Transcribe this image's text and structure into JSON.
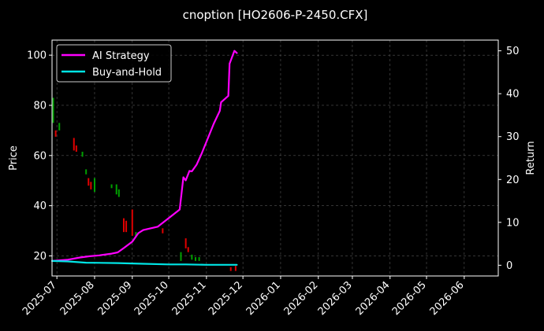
{
  "chart_data": {
    "type": "line",
    "title": "cnoption [HO2606-P-2450.CFX]",
    "ylabel_left": "Price",
    "ylabel_right": "Return",
    "xlim": [
      "2025-06-27",
      "2026-06-29"
    ],
    "ylim_left": [
      12,
      106
    ],
    "ylim_right": [
      -2.5,
      52.5
    ],
    "x_ticks": [
      "2025-07-01",
      "2025-08-01",
      "2025-09-01",
      "2025-10-01",
      "2025-11-01",
      "2025-12-01",
      "2026-01-01",
      "2026-02-01",
      "2026-03-01",
      "2026-04-01",
      "2026-05-01",
      "2026-06-01"
    ],
    "x_tick_labels": [
      "2025-07",
      "2025-08",
      "2025-09",
      "2025-10",
      "2025-11",
      "2025-12",
      "2026-01",
      "2026-02",
      "2026-03",
      "2026-04",
      "2026-05",
      "2026-06"
    ],
    "y_ticks_left": [
      20,
      40,
      60,
      80,
      100
    ],
    "y_ticks_right": [
      0,
      10,
      20,
      30,
      40,
      50
    ],
    "grid": true,
    "legend_position": "top-left",
    "colors": {
      "background": "#000000",
      "grid": "#555555",
      "up": "#00a000",
      "down": "#e00000",
      "strategy": "#ff00ff",
      "buyhold": "#00e5e5"
    },
    "series": [
      {
        "name": "AI Strategy",
        "axis": "right",
        "color": "#ff00ff",
        "x": [
          "2025-06-27",
          "2025-07-10",
          "2025-07-20",
          "2025-07-28",
          "2025-08-05",
          "2025-08-15",
          "2025-08-20",
          "2025-08-25",
          "2025-09-01",
          "2025-09-06",
          "2025-09-10",
          "2025-09-22",
          "2025-10-10",
          "2025-10-13",
          "2025-10-15",
          "2025-10-18",
          "2025-10-20",
          "2025-10-24",
          "2025-10-28",
          "2025-11-02",
          "2025-11-07",
          "2025-11-12",
          "2025-11-13",
          "2025-11-19",
          "2025-11-20",
          "2025-11-24",
          "2025-11-26"
        ],
        "y": [
          1.0,
          1.3,
          1.8,
          2.1,
          2.3,
          2.7,
          3.0,
          4.0,
          5.5,
          7.5,
          8.2,
          9.0,
          13.0,
          20.5,
          19.8,
          22.0,
          21.9,
          23.5,
          26.0,
          29.5,
          33.0,
          36.0,
          38.0,
          39.5,
          47.0,
          50.0,
          49.5
        ]
      },
      {
        "name": "Buy-and-Hold",
        "axis": "right",
        "color": "#00e5e5",
        "x": [
          "2025-06-27",
          "2025-07-10",
          "2025-07-25",
          "2025-08-20",
          "2025-09-10",
          "2025-10-01",
          "2025-10-15",
          "2025-11-01",
          "2025-11-26"
        ],
        "y": [
          1.0,
          0.9,
          0.6,
          0.5,
          0.35,
          0.2,
          0.2,
          0.1,
          0.1
        ]
      }
    ],
    "price_bars": {
      "axis": "left",
      "bars": [
        {
          "x": "2025-06-28",
          "low": 73,
          "high": 83,
          "dir": "up"
        },
        {
          "x": "2025-06-30",
          "low": 67.5,
          "high": 70,
          "dir": "down"
        },
        {
          "x": "2025-07-03",
          "low": 70,
          "high": 73,
          "dir": "up"
        },
        {
          "x": "2025-07-15",
          "low": 62,
          "high": 67,
          "dir": "down"
        },
        {
          "x": "2025-07-17",
          "low": 61.5,
          "high": 64,
          "dir": "down"
        },
        {
          "x": "2025-07-22",
          "low": 59.5,
          "high": 61.5,
          "dir": "up"
        },
        {
          "x": "2025-07-25",
          "low": 52.5,
          "high": 54.5,
          "dir": "up"
        },
        {
          "x": "2025-07-27",
          "low": 48,
          "high": 51,
          "dir": "down"
        },
        {
          "x": "2025-07-29",
          "low": 46.5,
          "high": 49.5,
          "dir": "down"
        },
        {
          "x": "2025-08-01",
          "low": 45.5,
          "high": 51,
          "dir": "up"
        },
        {
          "x": "2025-08-15",
          "low": 47,
          "high": 48.5,
          "dir": "up"
        },
        {
          "x": "2025-08-19",
          "low": 44.5,
          "high": 48.5,
          "dir": "up"
        },
        {
          "x": "2025-08-21",
          "low": 43.5,
          "high": 46.5,
          "dir": "up"
        },
        {
          "x": "2025-08-25",
          "low": 29.5,
          "high": 35,
          "dir": "down"
        },
        {
          "x": "2025-08-27",
          "low": 29.5,
          "high": 34,
          "dir": "down"
        },
        {
          "x": "2025-09-01",
          "low": 28,
          "high": 38.5,
          "dir": "down"
        },
        {
          "x": "2025-09-04",
          "low": 27.5,
          "high": 29.5,
          "dir": "up"
        },
        {
          "x": "2025-09-26",
          "low": 29,
          "high": 31,
          "dir": "down"
        },
        {
          "x": "2025-10-11",
          "low": 18,
          "high": 21.5,
          "dir": "up"
        },
        {
          "x": "2025-10-15",
          "low": 23,
          "high": 27,
          "dir": "down"
        },
        {
          "x": "2025-10-17",
          "low": 21.5,
          "high": 23.5,
          "dir": "down"
        },
        {
          "x": "2025-10-20",
          "low": 18.5,
          "high": 20.5,
          "dir": "up"
        },
        {
          "x": "2025-10-23",
          "low": 18,
          "high": 19.5,
          "dir": "up"
        },
        {
          "x": "2025-10-26",
          "low": 18,
          "high": 19.5,
          "dir": "up"
        },
        {
          "x": "2025-11-21",
          "low": 14,
          "high": 15.5,
          "dir": "down"
        },
        {
          "x": "2025-11-25",
          "low": 14,
          "high": 16,
          "dir": "down"
        }
      ]
    }
  }
}
